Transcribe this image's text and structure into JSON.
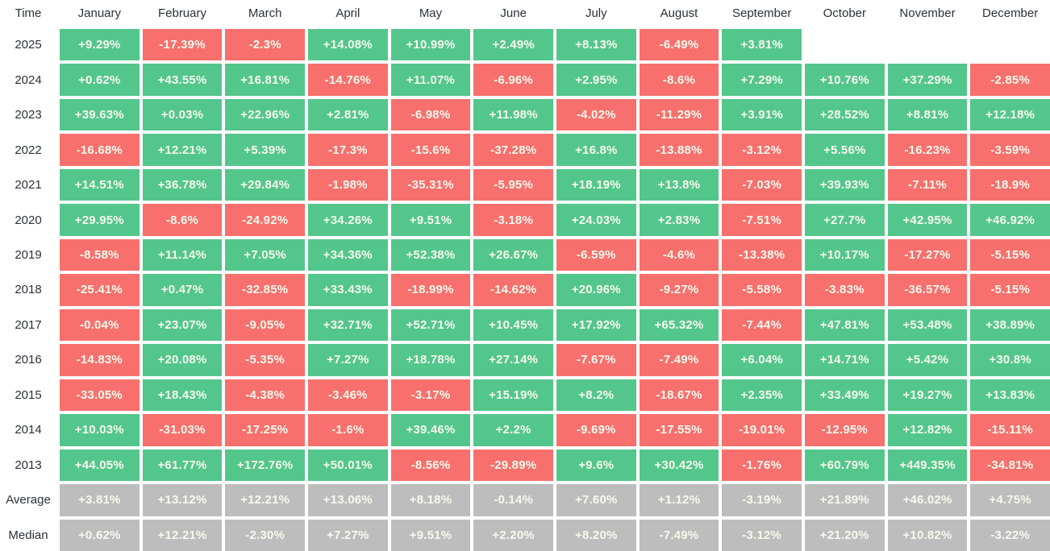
{
  "chart_data": {
    "type": "heatmap",
    "columns": [
      "Time",
      "January",
      "February",
      "March",
      "April",
      "May",
      "June",
      "July",
      "August",
      "September",
      "October",
      "November",
      "December"
    ],
    "rows": [
      {
        "label": "2025",
        "kind": "year",
        "values": [
          "+9.29%",
          "-17.39%",
          "-2.3%",
          "+14.08%",
          "+10.99%",
          "+2.49%",
          "+8.13%",
          "-6.49%",
          "+3.81%",
          null,
          null,
          null
        ]
      },
      {
        "label": "2024",
        "kind": "year",
        "values": [
          "+0.62%",
          "+43.55%",
          "+16.81%",
          "-14.76%",
          "+11.07%",
          "-6.96%",
          "+2.95%",
          "-8.6%",
          "+7.29%",
          "+10.76%",
          "+37.29%",
          "-2.85%"
        ]
      },
      {
        "label": "2023",
        "kind": "year",
        "values": [
          "+39.63%",
          "+0.03%",
          "+22.96%",
          "+2.81%",
          "-6.98%",
          "+11.98%",
          "-4.02%",
          "-11.29%",
          "+3.91%",
          "+28.52%",
          "+8.81%",
          "+12.18%"
        ]
      },
      {
        "label": "2022",
        "kind": "year",
        "values": [
          "-16.68%",
          "+12.21%",
          "+5.39%",
          "-17.3%",
          "-15.6%",
          "-37.28%",
          "+16.8%",
          "-13.88%",
          "-3.12%",
          "+5.56%",
          "-16.23%",
          "-3.59%"
        ]
      },
      {
        "label": "2021",
        "kind": "year",
        "values": [
          "+14.51%",
          "+36.78%",
          "+29.84%",
          "-1.98%",
          "-35.31%",
          "-5.95%",
          "+18.19%",
          "+13.8%",
          "-7.03%",
          "+39.93%",
          "-7.11%",
          "-18.9%"
        ]
      },
      {
        "label": "2020",
        "kind": "year",
        "values": [
          "+29.95%",
          "-8.6%",
          "-24.92%",
          "+34.26%",
          "+9.51%",
          "-3.18%",
          "+24.03%",
          "+2.83%",
          "-7.51%",
          "+27.7%",
          "+42.95%",
          "+46.92%"
        ]
      },
      {
        "label": "2019",
        "kind": "year",
        "values": [
          "-8.58%",
          "+11.14%",
          "+7.05%",
          "+34.36%",
          "+52.38%",
          "+26.67%",
          "-6.59%",
          "-4.6%",
          "-13.38%",
          "+10.17%",
          "-17.27%",
          "-5.15%"
        ]
      },
      {
        "label": "2018",
        "kind": "year",
        "values": [
          "-25.41%",
          "+0.47%",
          "-32.85%",
          "+33.43%",
          "-18.99%",
          "-14.62%",
          "+20.96%",
          "-9.27%",
          "-5.58%",
          "-3.83%",
          "-36.57%",
          "-5.15%"
        ]
      },
      {
        "label": "2017",
        "kind": "year",
        "values": [
          "-0.04%",
          "+23.07%",
          "-9.05%",
          "+32.71%",
          "+52.71%",
          "+10.45%",
          "+17.92%",
          "+65.32%",
          "-7.44%",
          "+47.81%",
          "+53.48%",
          "+38.89%"
        ]
      },
      {
        "label": "2016",
        "kind": "year",
        "values": [
          "-14.83%",
          "+20.08%",
          "-5.35%",
          "+7.27%",
          "+18.78%",
          "+27.14%",
          "-7.67%",
          "-7.49%",
          "+6.04%",
          "+14.71%",
          "+5.42%",
          "+30.8%"
        ]
      },
      {
        "label": "2015",
        "kind": "year",
        "values": [
          "-33.05%",
          "+18.43%",
          "-4.38%",
          "-3.46%",
          "-3.17%",
          "+15.19%",
          "+8.2%",
          "-18.67%",
          "+2.35%",
          "+33.49%",
          "+19.27%",
          "+13.83%"
        ]
      },
      {
        "label": "2014",
        "kind": "year",
        "values": [
          "+10.03%",
          "-31.03%",
          "-17.25%",
          "-1.6%",
          "+39.46%",
          "+2.2%",
          "-9.69%",
          "-17.55%",
          "-19.01%",
          "-12.95%",
          "+12.82%",
          "-15.11%"
        ]
      },
      {
        "label": "2013",
        "kind": "year",
        "values": [
          "+44.05%",
          "+61.77%",
          "+172.76%",
          "+50.01%",
          "-8.56%",
          "-29.89%",
          "+9.6%",
          "+30.42%",
          "-1.76%",
          "+60.79%",
          "+449.35%",
          "-34.81%"
        ]
      },
      {
        "label": "Average",
        "kind": "summary",
        "values": [
          "+3.81%",
          "+13.12%",
          "+12.21%",
          "+13.06%",
          "+8.18%",
          "-0.14%",
          "+7.60%",
          "+1.12%",
          "-3.19%",
          "+21.89%",
          "+46.02%",
          "+4.75%"
        ]
      },
      {
        "label": "Median",
        "kind": "summary",
        "values": [
          "+0.62%",
          "+12.21%",
          "-2.30%",
          "+7.27%",
          "+9.51%",
          "+2.20%",
          "+8.20%",
          "-7.49%",
          "-3.12%",
          "+21.20%",
          "+10.82%",
          "-3.22%"
        ]
      }
    ],
    "layout": {
      "grid": "off",
      "legend": "none"
    }
  },
  "colors": {
    "positive": "#53c68c",
    "negative": "#f7706d",
    "summary": "#bdbdbd",
    "cell_text": "#f7f9ee",
    "label_text": "#2b3139",
    "background": "#ffffff"
  }
}
